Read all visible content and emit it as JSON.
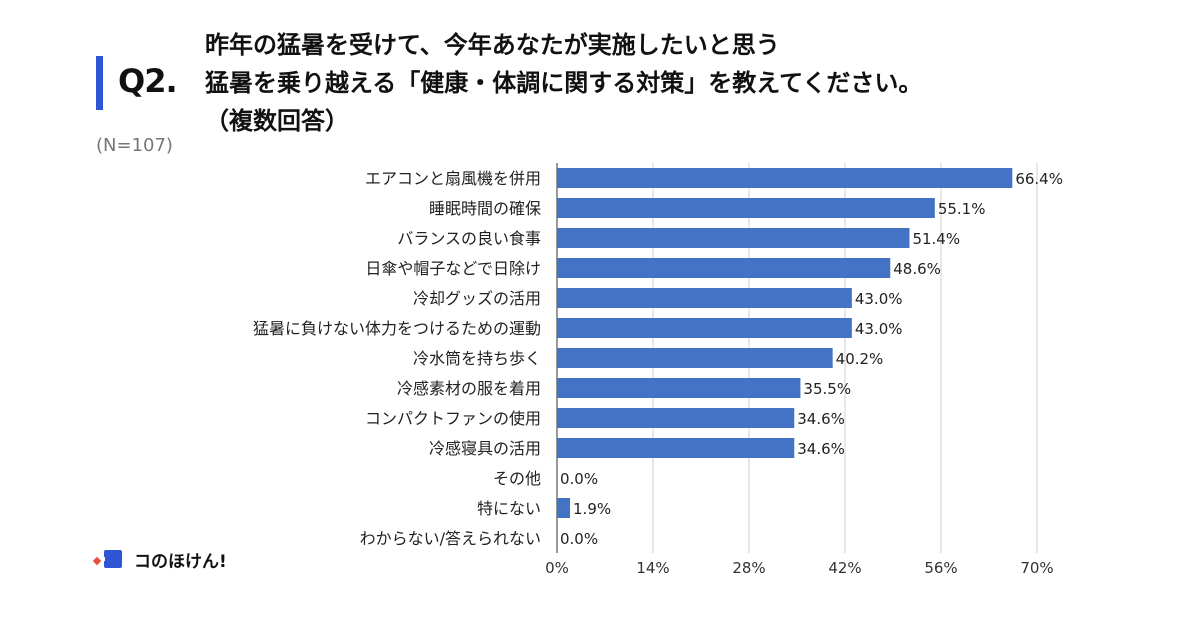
{
  "header": {
    "q_label": "Q2.",
    "question_lines": [
      "昨年の猛暑を受けて、今年あなたが実施したいと思う",
      "猛暑を乗り越える「健康・体調に関する対策」を教えてください。",
      "（複数回答）"
    ],
    "sample_size": "(N=107)"
  },
  "brand": {
    "name": "コのほけん!",
    "color": "#2f55d4",
    "accent": "#e8503a"
  },
  "chart_data": {
    "type": "bar",
    "orientation": "horizontal",
    "categories": [
      "エアコンと扇風機を併用",
      "睡眠時間の確保",
      "バランスの良い食事",
      "日傘や帽子などで日除け",
      "冷却グッズの活用",
      "猛暑に負けない体力をつけるための運動",
      "冷水筒を持ち歩く",
      "冷感素材の服を着用",
      "コンパクトファンの使用",
      "冷感寝具の活用",
      "その他",
      "特にない",
      "わからない/答えられない"
    ],
    "values": [
      66.4,
      55.1,
      51.4,
      48.6,
      43.0,
      43.0,
      40.2,
      35.5,
      34.6,
      34.6,
      0.0,
      1.9,
      0.0
    ],
    "value_labels": [
      "66.4%",
      "55.1%",
      "51.4%",
      "48.6%",
      "43.0%",
      "43.0%",
      "40.2%",
      "35.5%",
      "34.6%",
      "34.6%",
      "0.0%",
      "1.9%",
      "0.0%"
    ],
    "xlim": [
      0,
      70
    ],
    "xticks": [
      0,
      14,
      28,
      42,
      56,
      70
    ],
    "xtick_labels": [
      "0%",
      "14%",
      "28%",
      "42%",
      "56%",
      "70%"
    ],
    "grid": true,
    "bar_color": "#4472c4",
    "grid_color": "#d0d0d0"
  }
}
